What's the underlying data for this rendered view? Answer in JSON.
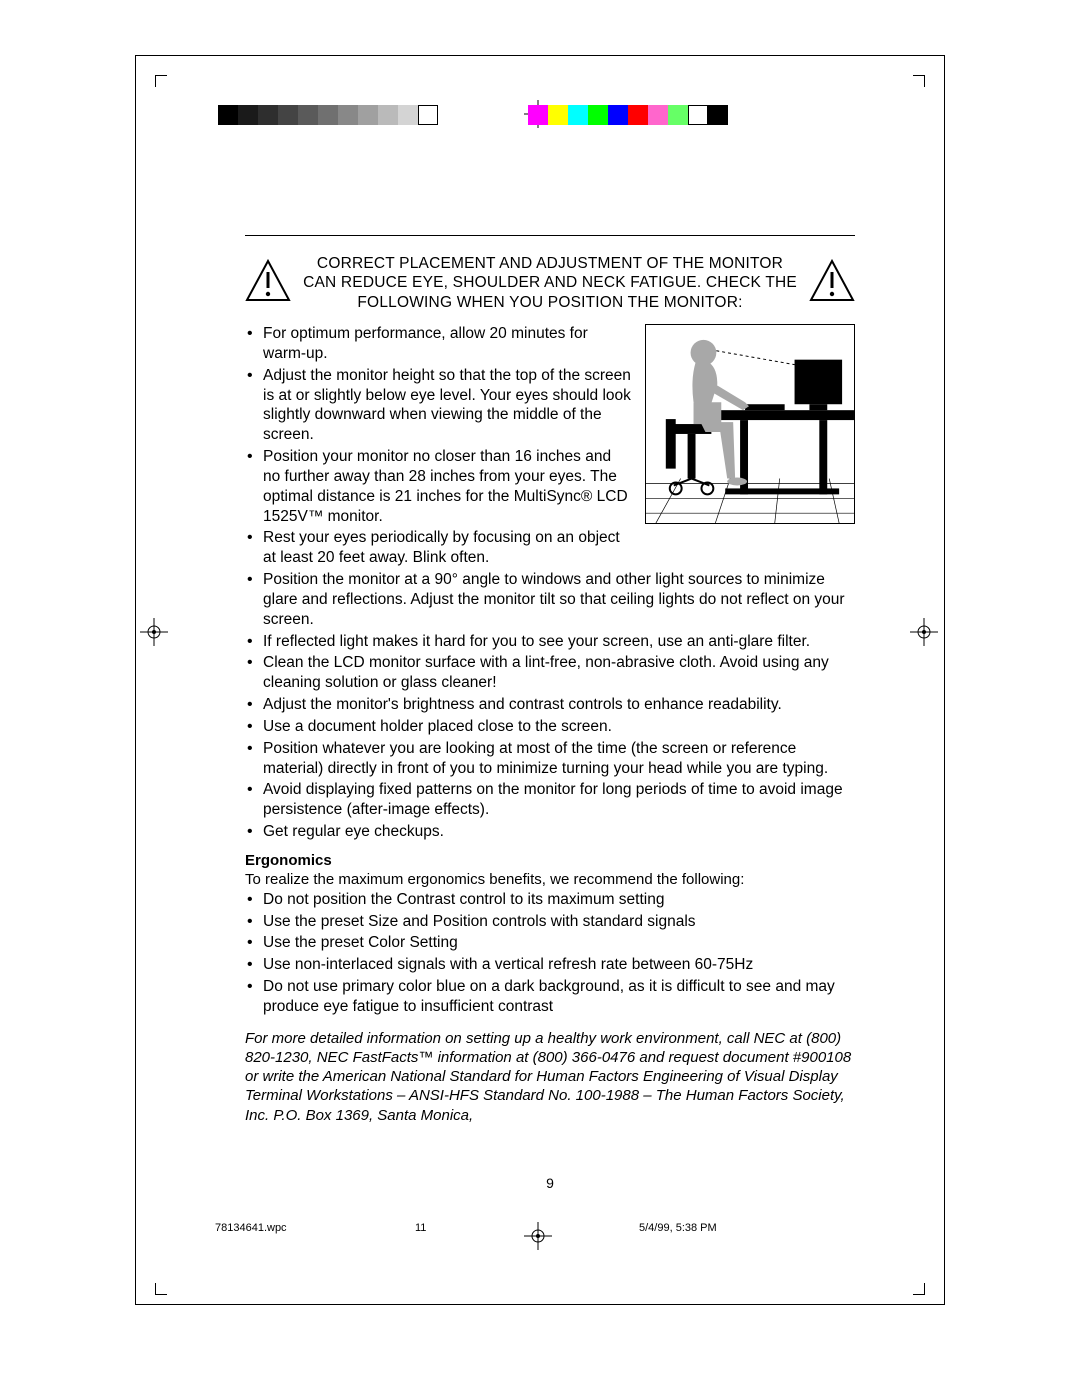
{
  "printer_marks": {
    "grayscale": [
      "#000000",
      "#1a1a1a",
      "#2e2e2e",
      "#444444",
      "#5a5a5a",
      "#707070",
      "#888888",
      "#a0a0a0",
      "#bababa",
      "#d4d4d4",
      "#ffffff"
    ],
    "colors": [
      "#ff00ff",
      "#ffff00",
      "#00ffff",
      "#00ff00",
      "#0000ff",
      "#ff0000",
      "#ff66cc",
      "#66ff66",
      "#ffffff",
      "#000000"
    ]
  },
  "warning_text": "CORRECT PLACEMENT AND ADJUSTMENT OF THE MONITOR CAN REDUCE EYE, SHOULDER AND NECK FATIGUE. CHECK THE FOLLOWING WHEN YOU POSITION THE MONITOR:",
  "bullets_top": [
    "For optimum performance, allow 20 minutes for warm-up.",
    "Adjust the monitor height so that the top of the screen is at or slightly below eye level. Your eyes should look slightly downward when viewing the middle of the screen.",
    "Position your monitor no closer than 16 inches and no further away than 28 inches from your eyes. The optimal distance is 21 inches for the MultiSync® LCD 1525V™ monitor.",
    "Rest your eyes periodically by focusing on an object at least 20 feet away. Blink often.",
    "Position the monitor at a 90° angle to windows and other light sources to minimize glare and reflections. Adjust the monitor tilt so that ceiling lights do not reflect on your screen.",
    "If reflected light makes it hard for you to see your screen, use an anti-glare filter.",
    "Clean the LCD monitor surface with a lint-free, non-abrasive cloth. Avoid using any cleaning solution or glass cleaner!",
    "Adjust the monitor's brightness and contrast controls to enhance readability.",
    "Use a document holder placed close to the screen.",
    "Position whatever you are looking at most of the time (the screen or reference material) directly in front of you to minimize turning your head while you are typing.",
    "Avoid displaying fixed patterns on the monitor for long periods of time to avoid image persistence (after-image effects).",
    "Get regular eye checkups."
  ],
  "ergonomics_heading": "Ergonomics",
  "ergonomics_intro": "To realize the maximum ergonomics benefits, we recommend the following:",
  "bullets_ergo": [
    "Do not position the Contrast control to its maximum setting",
    "Use the preset Size and Position controls with standard signals",
    "Use the preset Color Setting",
    "Use non-interlaced signals with a vertical refresh rate between 60-75Hz",
    "Do not use primary color blue on a dark background, as it is difficult to see and may produce eye fatigue to insufficient contrast"
  ],
  "footnote": "For more detailed information on setting up a healthy work environment, call NEC at (800) 820-1230, NEC FastFacts™ information at (800) 366-0476 and request document #900108 or write the American National Standard for Human Factors Engineering of Visual Display Terminal Workstations – ANSI-HFS Standard No. 100-1988 – The Human Factors Society, Inc. P.O. Box 1369, Santa Monica,",
  "page_number": "9",
  "footer": {
    "filename": "78134641.wpc",
    "sheet": "11",
    "timestamp": "5/4/99, 5:38 PM"
  },
  "illustration_alt": "person-at-desk-ergonomics"
}
